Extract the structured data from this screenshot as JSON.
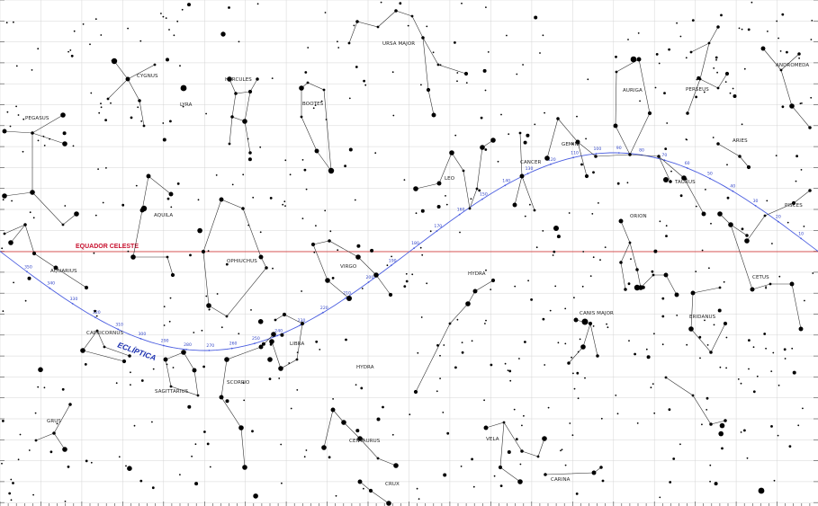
{
  "labels": {
    "equator": "EQUADOR CELESTE",
    "ecliptic": "ECLÍPTICA"
  },
  "constellations": [
    "URSA MAJOR",
    "CYGNUS",
    "LYRA",
    "HERCULES",
    "PEGASUS",
    "BOOTES",
    "AURIGA",
    "PERSEUS",
    "ANDROMEDA",
    "ARIES",
    "GEMINI",
    "CANCER",
    "LEO",
    "TAURUS",
    "PISCES",
    "AQUILA",
    "ORION",
    "OPHIUCHUS",
    "AQUARIUS",
    "VIRGO",
    "HYDRA",
    "CETUS",
    "CANIS MAJOR",
    "ERIDANUS",
    "CAPRICORNUS",
    "LIBRA",
    "SAGITTARIUS",
    "SCORPIO",
    "HYDRA",
    "GRUS",
    "CENTAURUS",
    "VELA",
    "CARINA",
    "CRUX"
  ],
  "ecliptic_degrees": [
    "350",
    "340",
    "330",
    "320",
    "310",
    "300",
    "290",
    "280",
    "270",
    "260",
    "250",
    "240",
    "230",
    "220",
    "210",
    "200",
    "190",
    "180",
    "170",
    "160",
    "150",
    "140",
    "130",
    "120",
    "110",
    "100",
    "90",
    "80",
    "70",
    "60",
    "50",
    "40",
    "30",
    "20",
    "10"
  ],
  "colors": {
    "equator": "#d62a2a",
    "ecliptic": "#4a5de0",
    "grid": "#cccccc",
    "stars": "#000000",
    "lines": "#333333"
  }
}
